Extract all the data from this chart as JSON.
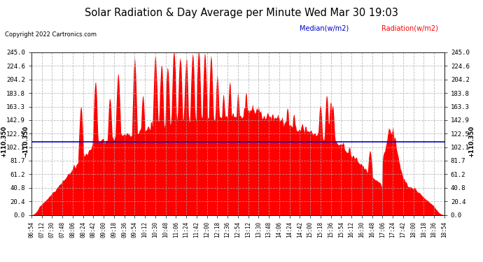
{
  "title": "Solar Radiation & Day Average per Minute Wed Mar 30 19:03",
  "copyright": "Copyright 2022 Cartronics.com",
  "legend_median": "Median(w/m2)",
  "legend_radiation": "Radiation(w/m2)",
  "median_value": 110.35,
  "ymax": 245.0,
  "ymin": 0.0,
  "yticks": [
    0.0,
    20.4,
    40.8,
    61.2,
    81.7,
    102.1,
    122.5,
    142.9,
    163.3,
    183.8,
    204.2,
    224.6,
    245.0
  ],
  "x_labels": [
    "06:54",
    "07:12",
    "07:30",
    "07:48",
    "08:06",
    "08:24",
    "08:42",
    "09:00",
    "09:18",
    "09:36",
    "09:54",
    "10:12",
    "10:30",
    "10:48",
    "11:06",
    "11:24",
    "11:42",
    "12:00",
    "12:18",
    "12:36",
    "12:54",
    "13:12",
    "13:30",
    "13:48",
    "14:06",
    "14:24",
    "14:42",
    "15:00",
    "15:18",
    "15:36",
    "15:54",
    "16:12",
    "16:30",
    "16:48",
    "17:06",
    "17:24",
    "17:42",
    "18:00",
    "18:18",
    "18:36",
    "18:54"
  ],
  "background_color": "#ffffff",
  "plot_bg_color": "#ffffff",
  "grid_color": "#aaaaaa",
  "radiation_color": "#ff0000",
  "median_line_color": "#0000cc",
  "title_color": "#000000",
  "copyright_color": "#000000"
}
